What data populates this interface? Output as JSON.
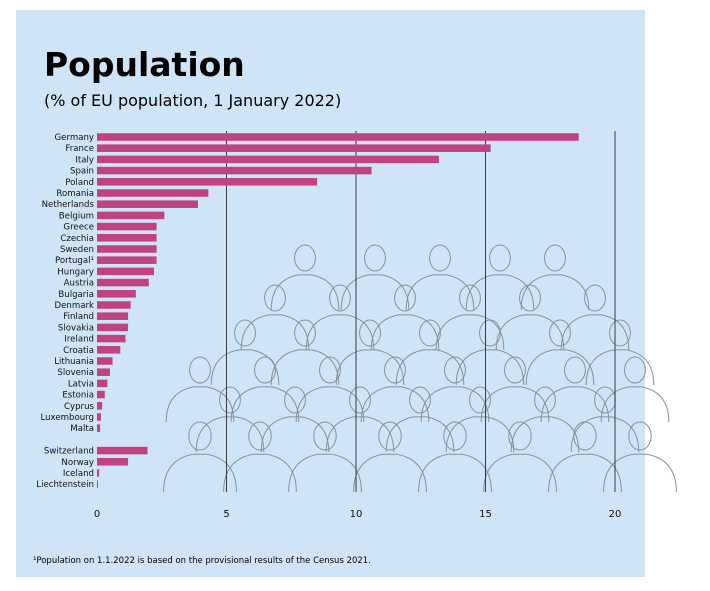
{
  "title": "Population",
  "subtitle": "(% of EU population, 1 January 2022)",
  "footnote": "¹Population on 1.1.2022 is based on the provisional results of the Census 2021.",
  "colors": {
    "background": "#cfe5f7",
    "bar": "#c0427f",
    "grid": "#3c3c3c"
  },
  "illustration": "crowd-of-people-line-drawing",
  "chart_data": {
    "type": "bar",
    "orientation": "horizontal",
    "xlim": [
      0,
      20
    ],
    "xticks": [
      0,
      5,
      10,
      15,
      20
    ],
    "grid": true,
    "groups": [
      {
        "categories": [
          "Germany",
          "France",
          "Italy",
          "Spain",
          "Poland",
          "Romania",
          "Netherlands",
          "Belgium",
          "Greece",
          "Czechia",
          "Sweden",
          "Portugal¹",
          "Hungary",
          "Austria",
          "Bulgaria",
          "Denmark",
          "Finland",
          "Slovakia",
          "Ireland",
          "Croatia",
          "Lithuania",
          "Slovenia",
          "Latvia",
          "Estonia",
          "Cyprus",
          "Luxembourg",
          "Malta"
        ],
        "values": [
          18.6,
          15.2,
          13.2,
          10.6,
          8.5,
          4.3,
          3.9,
          2.6,
          2.3,
          2.3,
          2.3,
          2.3,
          2.2,
          2.0,
          1.5,
          1.3,
          1.2,
          1.2,
          1.1,
          0.9,
          0.6,
          0.5,
          0.4,
          0.3,
          0.2,
          0.15,
          0.12
        ]
      },
      {
        "categories": [
          "Switzerland",
          "Norway",
          "Iceland",
          "Liechtenstein"
        ],
        "values": [
          1.95,
          1.2,
          0.08,
          0.01
        ]
      }
    ]
  }
}
